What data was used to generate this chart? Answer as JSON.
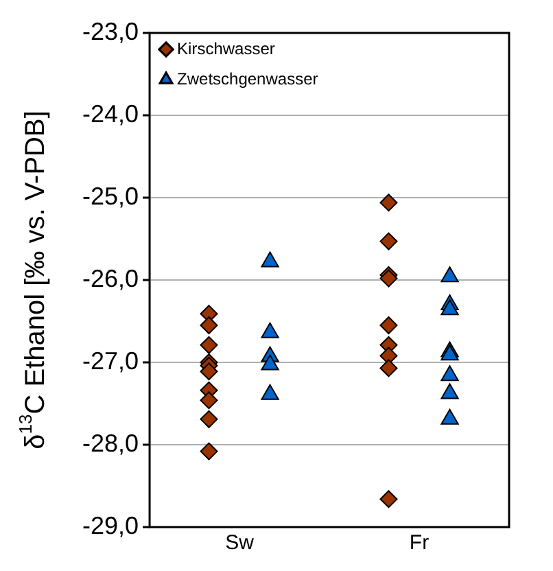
{
  "chart_data": {
    "type": "scatter",
    "ylabel": "δ$^{13}$C Ethanol [‰ vs. V-PDB]",
    "categories": [
      "Sw",
      "Fr"
    ],
    "ylim": [
      -29,
      -23
    ],
    "yticks": [
      {
        "value": -29,
        "label": "-29,0"
      },
      {
        "value": -28,
        "label": "-28,0"
      },
      {
        "value": -27,
        "label": "-27,0"
      },
      {
        "value": -26,
        "label": "-26,0"
      },
      {
        "value": -25,
        "label": "-25,0"
      },
      {
        "value": -24,
        "label": "-24,0"
      },
      {
        "value": -23,
        "label": "-23,0"
      }
    ],
    "grid": "y",
    "legend": "top left",
    "series": [
      {
        "name": "Kirschwasser",
        "color": "#993300",
        "marker": "diamond",
        "x": [
          "Sw",
          "Sw",
          "Sw",
          "Sw",
          "Sw",
          "Sw",
          "Sw",
          "Sw",
          "Sw",
          "Sw",
          "Fr",
          "Fr",
          "Fr",
          "Fr",
          "Fr",
          "Fr",
          "Fr",
          "Fr",
          "Fr"
        ],
        "values": [
          -26.41,
          -26.55,
          -26.79,
          -27.0,
          -27.04,
          -27.11,
          -27.34,
          -27.46,
          -27.69,
          -28.08,
          -25.06,
          -25.53,
          -25.94,
          -25.98,
          -26.55,
          -26.79,
          -26.92,
          -27.07,
          -28.66
        ]
      },
      {
        "name": "Zwetschgenwasser",
        "color": "#0066cc",
        "marker": "triangle",
        "x": [
          "Sw",
          "Sw",
          "Sw",
          "Sw",
          "Sw",
          "Fr",
          "Fr",
          "Fr",
          "Fr",
          "Fr",
          "Fr",
          "Fr",
          "Fr"
        ],
        "values": [
          -25.78,
          -26.64,
          -26.93,
          -27.03,
          -27.39,
          -25.96,
          -26.3,
          -26.36,
          -26.87,
          -26.91,
          -27.16,
          -27.38,
          -27.69
        ]
      }
    ]
  }
}
